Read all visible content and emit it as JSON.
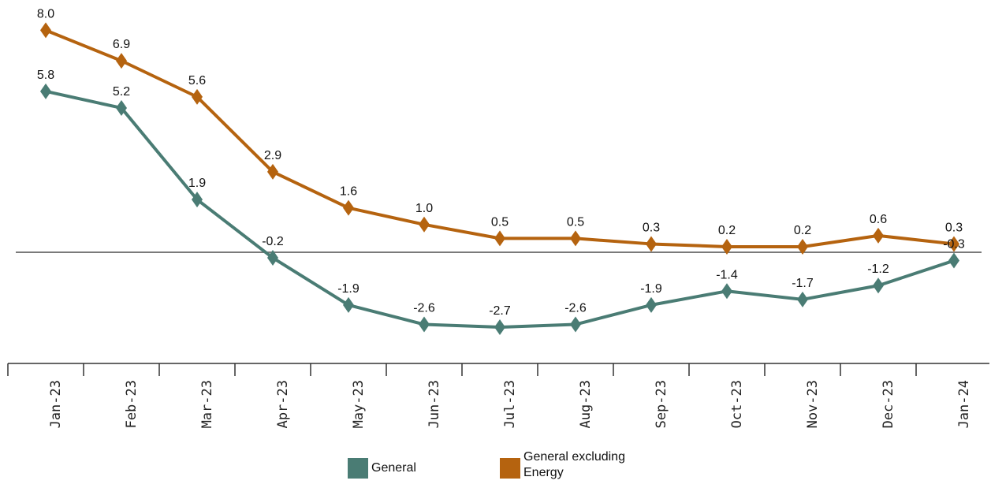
{
  "chart_data": {
    "type": "line",
    "categories": [
      "Jan-23",
      "Feb-23",
      "Mar-23",
      "Apr-23",
      "May-23",
      "Jun-23",
      "Jul-23",
      "Aug-23",
      "Sep-23",
      "Oct-23",
      "Nov-23",
      "Dec-23",
      "Jan-24"
    ],
    "series": [
      {
        "name": "General",
        "color": "#4a7c74",
        "values": [
          5.8,
          5.2,
          1.9,
          -0.2,
          -1.9,
          -2.6,
          -2.7,
          -2.6,
          -1.9,
          -1.4,
          -1.7,
          -1.2,
          -0.3
        ]
      },
      {
        "name": "General excluding Energy",
        "color": "#b5630f",
        "values": [
          8.0,
          6.9,
          5.6,
          2.9,
          1.6,
          1.0,
          0.5,
          0.5,
          0.3,
          0.2,
          0.2,
          0.6,
          0.3
        ]
      }
    ],
    "value_labels": {
      "General": [
        "5.8",
        "5.2",
        "1.9",
        "-0.2",
        "-1.9",
        "-2.6",
        "-2.7",
        "-2.6",
        "-1.9",
        "-1.4",
        "-1.7",
        "-1.2",
        "-0.3"
      ],
      "General excluding Energy": [
        "8.0",
        "6.9",
        "5.6",
        "2.9",
        "1.6",
        "1.0",
        "0.5",
        "0.5",
        "0.3",
        "0.2",
        "0.2",
        "0.6",
        "0.3"
      ]
    },
    "zero_line": true,
    "marker": "diamond",
    "legend_position": "bottom-center",
    "grid": false,
    "title": "",
    "xlabel": "",
    "ylabel": ""
  },
  "legend": {
    "items": [
      {
        "label": "General",
        "color": "#4a7c74"
      },
      {
        "label": "General excluding Energy",
        "color": "#b5630f"
      }
    ]
  }
}
